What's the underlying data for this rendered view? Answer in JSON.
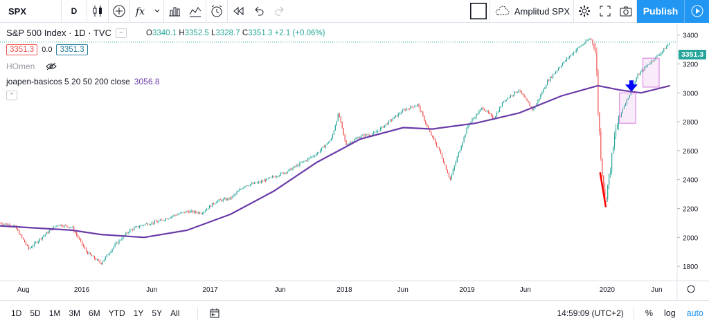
{
  "toolbar": {
    "symbol": "SPX",
    "interval": "D",
    "layout_name": "Amplitud SPX",
    "publish_label": "Publish"
  },
  "legend": {
    "title": "S&P 500 Index · 1D · TVC",
    "ohlc": {
      "o_label": "O",
      "o": "3340.1",
      "h_label": "H",
      "h": "3352.5",
      "l_label": "L",
      "l": "3328.7",
      "c_label": "C",
      "c": "3351.3",
      "change": "+2.1 (+0.06%)"
    },
    "bid": "3351.3",
    "spread": "0.0",
    "ask": "3351.3",
    "study1": "HOmen",
    "study2": "joapen-basicos 5 20 50 200 close",
    "study2_value": "3056.8"
  },
  "chart_data": {
    "type": "line",
    "x_labels": [
      "Aug",
      "2016",
      "Jun",
      "2017",
      "Jun",
      "2018",
      "Jun",
      "2019",
      "Jun",
      "2020",
      "Jun"
    ],
    "y_ticks": [
      1800,
      2000,
      2200,
      2400,
      2600,
      2800,
      3000,
      3200,
      3400
    ],
    "ylim": [
      1700,
      3480
    ],
    "last_price": "3351.3",
    "series": [
      {
        "type": "candlestick",
        "values": [
          [
            0,
            2100
          ],
          [
            4,
            2080
          ],
          [
            8,
            1920
          ],
          [
            12,
            2010
          ],
          [
            16,
            2090
          ],
          [
            20,
            2070
          ],
          [
            24,
            1900
          ],
          [
            28,
            1820
          ],
          [
            32,
            1950
          ],
          [
            36,
            2050
          ],
          [
            40,
            2090
          ],
          [
            44,
            2110
          ],
          [
            48,
            2150
          ],
          [
            52,
            2180
          ],
          [
            56,
            2170
          ],
          [
            60,
            2250
          ],
          [
            64,
            2270
          ],
          [
            68,
            2360
          ],
          [
            72,
            2380
          ],
          [
            76,
            2420
          ],
          [
            80,
            2460
          ],
          [
            84,
            2520
          ],
          [
            88,
            2580
          ],
          [
            92,
            2680
          ],
          [
            94,
            2860
          ],
          [
            96,
            2640
          ],
          [
            100,
            2700
          ],
          [
            104,
            2720
          ],
          [
            108,
            2800
          ],
          [
            112,
            2880
          ],
          [
            116,
            2920
          ],
          [
            119,
            2740
          ],
          [
            122,
            2600
          ],
          [
            125,
            2400
          ],
          [
            127,
            2560
          ],
          [
            130,
            2780
          ],
          [
            134,
            2900
          ],
          [
            137,
            2820
          ],
          [
            140,
            2950
          ],
          [
            144,
            3020
          ],
          [
            148,
            2880
          ],
          [
            152,
            3080
          ],
          [
            156,
            3200
          ],
          [
            160,
            3300
          ],
          [
            164,
            3380
          ],
          [
            165.5,
            3270
          ],
          [
            166,
            2900
          ],
          [
            167,
            2500
          ],
          [
            168,
            2250
          ],
          [
            169,
            2400
          ],
          [
            171,
            2750
          ],
          [
            173,
            2900
          ],
          [
            175,
            3000
          ],
          [
            177,
            3120
          ],
          [
            180,
            3200
          ],
          [
            184,
            3290
          ],
          [
            186,
            3350
          ]
        ]
      },
      {
        "type": "line",
        "name": "joapen-basicos 5 20 50 200 close",
        "color": "#6a3aa8",
        "values": [
          [
            0,
            2080
          ],
          [
            20,
            2050
          ],
          [
            28,
            2020
          ],
          [
            40,
            2000
          ],
          [
            52,
            2050
          ],
          [
            64,
            2160
          ],
          [
            76,
            2320
          ],
          [
            88,
            2520
          ],
          [
            100,
            2680
          ],
          [
            112,
            2760
          ],
          [
            120,
            2750
          ],
          [
            132,
            2790
          ],
          [
            144,
            2860
          ],
          [
            156,
            2980
          ],
          [
            166,
            3050
          ],
          [
            172,
            3020
          ],
          [
            178,
            3000
          ],
          [
            186,
            3050
          ]
        ]
      }
    ],
    "annotations": {
      "colors": {
        "red_line": "#ff0000",
        "arrow": "#0000ff",
        "boxes": "#d57adb"
      }
    }
  },
  "bottom": {
    "ranges": [
      "1D",
      "5D",
      "1M",
      "3M",
      "6M",
      "YTD",
      "1Y",
      "5Y",
      "All"
    ],
    "clock": "14:59:09 (UTC+2)",
    "percent": "%",
    "log": "log",
    "auto": "auto"
  }
}
